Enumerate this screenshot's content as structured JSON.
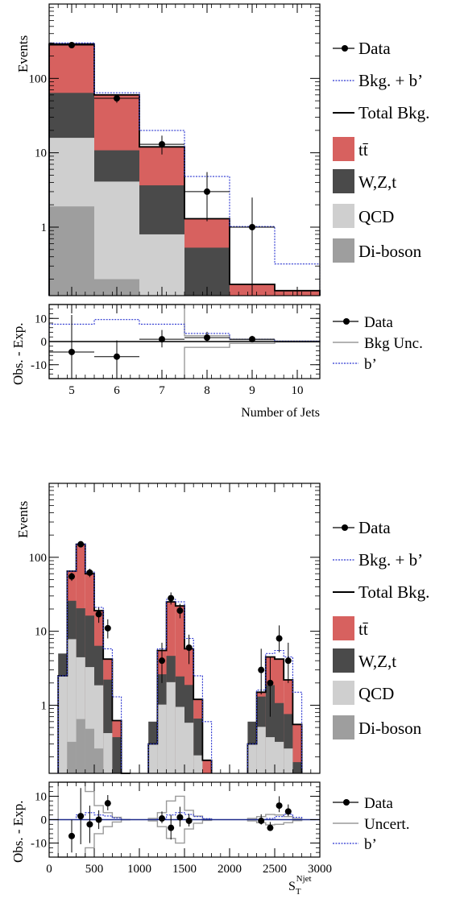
{
  "colors": {
    "ttbar": "#d7615f",
    "wzt": "#4a4a4a",
    "qcd": "#cfcfcf",
    "diboson": "#9e9e9e",
    "signal": "#2a35d0",
    "total": "#000000",
    "uncert": "#9a9a9a"
  },
  "chart_data": [
    {
      "type": "bar",
      "name": "njets-main",
      "ylabel": "Events",
      "yscale": "log",
      "ylim": [
        0.12,
        1000
      ],
      "xlim": [
        4.5,
        10.5
      ],
      "yticks": [
        {
          "v": 100,
          "label": "100"
        },
        {
          "v": 10,
          "label": "10"
        },
        {
          "v": 1,
          "label": "1"
        }
      ],
      "bins": [
        [
          4.5,
          5.5
        ],
        [
          5.5,
          6.5
        ],
        [
          6.5,
          7.5
        ],
        [
          7.5,
          8.5
        ],
        [
          8.5,
          9.5
        ],
        [
          9.5,
          10.5
        ]
      ],
      "stack": [
        {
          "key": "diboson",
          "label": "Di-boson",
          "values": [
            1.9,
            0.2,
            0.05,
            0.02,
            0.005,
            0.002
          ]
        },
        {
          "key": "qcd",
          "label": "QCD",
          "values": [
            14,
            3.9,
            0.75,
            0.1,
            0.02,
            0.01
          ]
        },
        {
          "key": "wzt",
          "label": "W,Z,t",
          "values": [
            48,
            6.7,
            2.85,
            0.41,
            0.08,
            0.03
          ]
        },
        {
          "key": "ttbar",
          "label": "tt̄",
          "values": [
            290,
            60,
            12,
            1.3,
            0.17,
            0.14
          ]
        }
      ],
      "total": {
        "label": "Total Bkg.",
        "values": [
          290,
          60,
          12,
          1.3,
          0.17,
          0.14
        ]
      },
      "signal": {
        "label": "Bkg. + b’",
        "values": [
          300,
          64,
          20,
          4.8,
          1.02,
          0.32
        ]
      },
      "data": {
        "label": "Data",
        "values": [
          280,
          54,
          13,
          3,
          1
        ],
        "x": [
          5,
          6,
          7,
          8,
          9
        ],
        "err_lo": [
          17,
          7,
          3.5,
          1.8,
          0.85
        ],
        "err_hi": [
          17,
          7,
          4,
          2.5,
          1.5
        ]
      }
    },
    {
      "type": "bar",
      "name": "njets-ratio",
      "ylabel": "Obs. - Exp.",
      "xlabel": "Number of Jets",
      "ylim": [
        -16,
        16
      ],
      "xlim": [
        4.5,
        10.5
      ],
      "xticks": [
        5,
        6,
        7,
        8,
        9,
        10
      ],
      "yticks": [
        {
          "v": 10,
          "label": "10"
        },
        {
          "v": 0,
          "label": "0"
        },
        {
          "v": -10,
          "label": "-10"
        }
      ],
      "bins": [
        [
          4.5,
          5.5
        ],
        [
          5.5,
          6.5
        ],
        [
          6.5,
          7.5
        ],
        [
          7.5,
          8.5
        ],
        [
          8.5,
          9.5
        ],
        [
          9.5,
          10.5
        ]
      ],
      "signal": {
        "label": "b’",
        "values": [
          7.5,
          9.5,
          7.5,
          3.5,
          1.0,
          0.2
        ]
      },
      "uncert": {
        "label": "Bkg Unc.",
        "hi": [
          30,
          30,
          16,
          2.5,
          0.8,
          0.2
        ],
        "lo": [
          -30,
          -30,
          -16,
          -2.5,
          -0.8,
          -0.2
        ]
      },
      "data": {
        "label": "Data",
        "x": [
          5,
          6,
          7,
          8,
          9
        ],
        "values": [
          -4.5,
          -6.5,
          1.0,
          1.7,
          1.0
        ],
        "err_lo": [
          16,
          7,
          3.5,
          1.8,
          0.8
        ],
        "err_hi": [
          16,
          7,
          4,
          2.5,
          1.5
        ]
      }
    },
    {
      "type": "bar",
      "name": "st-main",
      "ylabel": "Events",
      "yscale": "log",
      "ylim": [
        0.12,
        1000
      ],
      "xlim": [
        0,
        3000
      ],
      "yticks": [
        {
          "v": 100,
          "label": "100"
        },
        {
          "v": 10,
          "label": "10"
        },
        {
          "v": 1,
          "label": "1"
        }
      ],
      "bins": [
        [
          100,
          200
        ],
        [
          200,
          300
        ],
        [
          300,
          400
        ],
        [
          400,
          500
        ],
        [
          500,
          600
        ],
        [
          600,
          700
        ],
        [
          700,
          800
        ],
        [
          800,
          900
        ],
        [
          1100,
          1200
        ],
        [
          1200,
          1300
        ],
        [
          1300,
          1400
        ],
        [
          1400,
          1500
        ],
        [
          1500,
          1600
        ],
        [
          1600,
          1700
        ],
        [
          1700,
          1800
        ],
        [
          2200,
          2300
        ],
        [
          2300,
          2400
        ],
        [
          2400,
          2500
        ],
        [
          2500,
          2600
        ],
        [
          2600,
          2700
        ],
        [
          2700,
          2800
        ]
      ],
      "stack": [
        {
          "key": "diboson",
          "label": "Di-boson",
          "values": [
            0,
            0.32,
            0.65,
            0.48,
            0.26,
            0.12,
            0,
            0,
            0,
            0.02,
            0.05,
            0.05,
            0.03,
            0.01,
            0,
            0,
            0.01,
            0.02,
            0.02,
            0.01,
            0
          ]
        },
        {
          "key": "qcd",
          "label": "QCD",
          "values": [
            2.5,
            7.5,
            3.8,
            2.8,
            1.6,
            0.3,
            0.02,
            0,
            0.3,
            1.0,
            2.0,
            0.9,
            0.55,
            0.2,
            0.02,
            0.3,
            0.5,
            0.35,
            0.3,
            0.25,
            0.05
          ]
        },
        {
          "key": "wzt",
          "label": "W,Z,t",
          "values": [
            2.5,
            18,
            16,
            13,
            4.5,
            1.8,
            0.35,
            0,
            0.3,
            1.6,
            2.6,
            1.5,
            1.3,
            0.45,
            0.1,
            0.3,
            0.8,
            1.5,
            0.75,
            0.5,
            0.12
          ]
        },
        {
          "key": "ttbar",
          "label": "tt̄",
          "values": [
            2.5,
            65,
            150,
            60,
            19,
            4.2,
            0.62,
            0,
            0.3,
            5.5,
            25,
            22,
            5.8,
            1.2,
            0.18,
            0.3,
            1.5,
            4.5,
            4.2,
            2.2,
            0.55
          ]
        }
      ],
      "total": {
        "label": "Total Bkg.",
        "values": [
          2.5,
          65,
          150,
          60,
          19,
          4.2,
          0.62,
          0,
          0.3,
          5.5,
          25,
          22,
          5.8,
          1.2,
          0.18,
          0.3,
          1.5,
          4.5,
          4.2,
          2.2,
          0.55
        ]
      },
      "signal": {
        "label": "Bkg. + b’",
        "values": [
          2.5,
          65,
          152,
          63,
          21,
          5.8,
          1.3,
          0,
          0.3,
          5.8,
          27,
          25,
          8,
          2.5,
          0.6,
          0.3,
          1.6,
          5,
          5.5,
          4.5,
          1.5
        ]
      },
      "data": {
        "label": "Data",
        "x": [
          250,
          350,
          450,
          550,
          650,
          1250,
          1350,
          1450,
          1550,
          2350,
          2450,
          2550,
          2650
        ],
        "values": [
          55,
          150,
          62,
          17,
          11,
          4,
          28,
          19,
          6,
          3,
          2,
          8,
          4
        ],
        "err_lo": [
          7,
          12,
          8,
          4,
          3,
          2,
          5,
          4,
          2.4,
          1.6,
          1.3,
          2.8,
          2
        ],
        "err_hi": [
          7,
          12,
          8,
          4,
          3.5,
          3,
          5.5,
          4.5,
          3,
          2.8,
          2.5,
          4,
          3
        ]
      }
    },
    {
      "type": "bar",
      "name": "st-ratio",
      "ylabel": "Obs. - Exp.",
      "xlabel": "S",
      "xlabel_sub": "T",
      "xlabel_sup": "Njet",
      "ylim": [
        -16,
        16
      ],
      "xlim": [
        0,
        3000
      ],
      "xticks": [
        0,
        500,
        1000,
        1500,
        2000,
        2500,
        3000
      ],
      "yticks": [
        {
          "v": 10,
          "label": "10"
        },
        {
          "v": 0,
          "label": "0"
        },
        {
          "v": -10,
          "label": "-10"
        }
      ],
      "bins": [
        [
          100,
          200
        ],
        [
          200,
          300
        ],
        [
          300,
          400
        ],
        [
          400,
          500
        ],
        [
          500,
          600
        ],
        [
          600,
          700
        ],
        [
          700,
          800
        ],
        [
          800,
          900
        ],
        [
          1100,
          1200
        ],
        [
          1200,
          1300
        ],
        [
          1300,
          1400
        ],
        [
          1400,
          1500
        ],
        [
          1500,
          1600
        ],
        [
          1600,
          1700
        ],
        [
          1700,
          1800
        ],
        [
          2200,
          2300
        ],
        [
          2300,
          2400
        ],
        [
          2400,
          2500
        ],
        [
          2500,
          2600
        ],
        [
          2600,
          2700
        ],
        [
          2700,
          2800
        ]
      ],
      "signal": {
        "label": "b’",
        "values": [
          0,
          0,
          2,
          3,
          2,
          1.6,
          0.7,
          0,
          0,
          0.3,
          2,
          3,
          2.2,
          1.3,
          0.4,
          0,
          0.1,
          0.5,
          1.3,
          2.3,
          1
        ]
      },
      "uncert": {
        "label": "Uncert.",
        "hi": [
          30,
          30,
          30,
          12,
          6,
          3,
          1,
          0,
          0.5,
          3,
          8,
          10,
          4,
          1.5,
          0.3,
          0.5,
          1.3,
          2.2,
          2,
          1.3,
          0.4
        ],
        "lo": [
          -30,
          -30,
          -30,
          -12,
          -6,
          -3,
          -1,
          0,
          -0.5,
          -3,
          -8,
          -10,
          -4,
          -1.5,
          -0.3,
          -0.5,
          -1.3,
          -2.2,
          -2,
          -1.3,
          -0.4
        ]
      },
      "data": {
        "label": "Data",
        "x": [
          250,
          350,
          450,
          550,
          650,
          1250,
          1350,
          1450,
          1550,
          2350,
          2450,
          2550,
          2650
        ],
        "values": [
          -7,
          1.5,
          -2,
          0,
          7,
          0.5,
          -3.5,
          1,
          -0.5,
          -0.5,
          -3.5,
          6,
          3.5
        ],
        "err_lo": [
          7,
          12,
          8,
          4,
          3,
          2,
          5,
          4,
          2.4,
          1.6,
          1.3,
          2.8,
          2
        ],
        "err_hi": [
          7,
          12,
          8,
          4,
          3.5,
          3,
          5.5,
          4.5,
          3,
          2.8,
          2.5,
          4,
          3
        ]
      }
    }
  ]
}
